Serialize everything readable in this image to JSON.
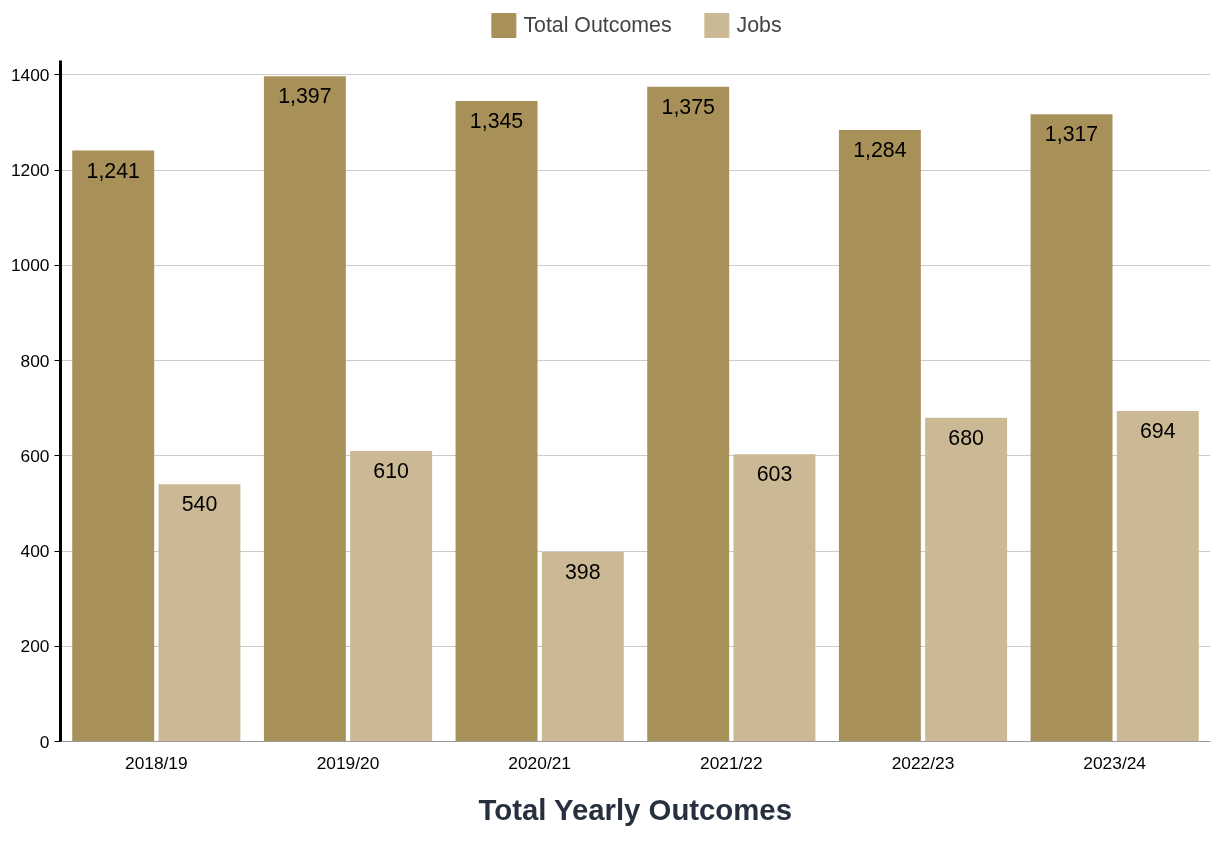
{
  "chart_data": {
    "type": "bar",
    "title": "Total Yearly Outcomes",
    "categories": [
      "2018/19",
      "2019/20",
      "2020/21",
      "2021/22",
      "2022/23",
      "2023/24"
    ],
    "series": [
      {
        "name": "Total Outcomes",
        "color": "#a89059",
        "values": [
          1241,
          1397,
          1345,
          1375,
          1284,
          1317
        ],
        "value_labels": [
          "1,241",
          "1,397",
          "1,345",
          "1,375",
          "1,284",
          "1,317"
        ]
      },
      {
        "name": "Jobs",
        "color": "#cbb894",
        "values": [
          540,
          610,
          398,
          603,
          680,
          694
        ],
        "value_labels": [
          "540",
          "610",
          "398",
          "603",
          "680",
          "694"
        ]
      }
    ],
    "ylim": [
      0,
      1430
    ],
    "yticks": [
      0,
      200,
      400,
      600,
      800,
      1000,
      1200,
      1400
    ],
    "grid": "y",
    "legend": "top"
  }
}
